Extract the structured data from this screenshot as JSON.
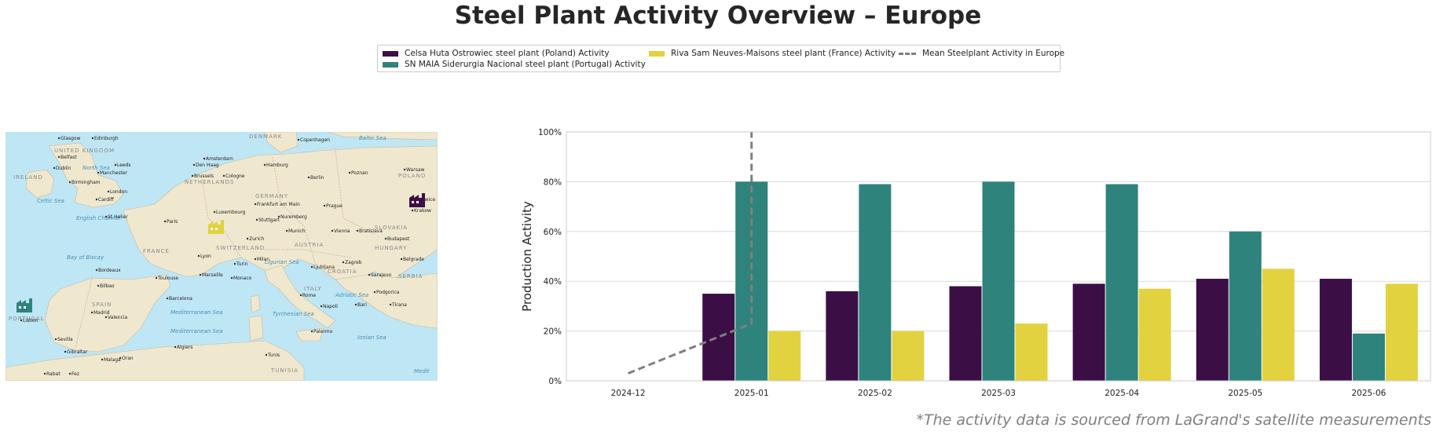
{
  "title": "Steel Plant Activity Overview – Europe",
  "footnote": "*The activity data is sourced from LaGrand's satellite measurements",
  "legend": [
    {
      "label": "Celsa Huta Ostrowiec steel plant (Poland) Activity",
      "color": "#3b0f46"
    },
    {
      "label": "SN MAIA Siderurgia Nacional steel plant (Portugal) Activity",
      "color": "#2e837c"
    },
    {
      "label": "Riva Sam Neuves-Maisons steel plant (France) Activity",
      "color": "#e2d23f"
    },
    {
      "label": "Mean Steelplant Activity in Europe",
      "color": "#808080"
    }
  ],
  "map": {
    "countries": [
      "UNITED KINGDOM",
      "IRELAND",
      "DENMARK",
      "NETHERLANDS",
      "GERMANY",
      "POLAND",
      "FRANCE",
      "SWITZERLAND",
      "AUSTRIA",
      "HUNGARY",
      "SLOVAKIA",
      "CROATIA",
      "SERBIA",
      "ITALY",
      "SPAIN",
      "PORTUGAL",
      "TUNISIA"
    ],
    "seas": [
      "North Sea",
      "Baltic Sea",
      "Celtic Sea",
      "English Channel",
      "Bay of Biscay",
      "Ligurian Sea",
      "Adriatic Sea",
      "Tyrrhenian Sea",
      "Ionian Sea",
      "Mediterranean Sea",
      "Mediterranean Sea",
      "Medit"
    ],
    "cities": [
      "Glasgow",
      "Edinburgh",
      "Belfast",
      "Leeds",
      "Dublin",
      "Manchester",
      "Birmingham",
      "London",
      "Cardiff",
      "Amsterdam",
      "Den Haag",
      "Brussels",
      "Cologne",
      "Copenhagen",
      "Hamburg",
      "Berlin",
      "Poznan",
      "Warsaw",
      "Katowice",
      "Krakow",
      "Prague",
      "Frankfurt am Main",
      "Luxembourg",
      "St Helier",
      "Paris",
      "Stuttgart",
      "Nuremberg",
      "Munich",
      "Vienna",
      "Bratislava",
      "Budapest",
      "Zurich",
      "Lyon",
      "Milan",
      "Turin",
      "Monaco",
      "Marseille",
      "Toulouse",
      "Bordeaux",
      "Bilbao",
      "Ljubljana",
      "Zagreb",
      "Belgrade",
      "Sarajevo",
      "Podgorica",
      "Rome",
      "Tirana",
      "Bari",
      "Napoli",
      "Barcelona",
      "Valencia",
      "Madrid",
      "Lisbon",
      "Sevilla",
      "Gibraltar",
      "Oran",
      "Algiers",
      "Tunis",
      "Palermo",
      "Malaga",
      "Rabat",
      "Fez"
    ],
    "markers": [
      {
        "name": "Poland plant",
        "color": "#3b0f46",
        "icon": "factory-icon"
      },
      {
        "name": "France plant",
        "color": "#e2d23f",
        "icon": "factory-icon"
      },
      {
        "name": "Portugal plant",
        "color": "#2e837c",
        "icon": "factory-icon"
      }
    ]
  },
  "chart_data": {
    "type": "bar",
    "title": "",
    "xlabel": "",
    "ylabel": "Production Activity",
    "ylim": [
      0,
      100
    ],
    "yticks": [
      0,
      20,
      40,
      60,
      80,
      100
    ],
    "ytick_labels": [
      "0%",
      "20%",
      "40%",
      "60%",
      "80%",
      "100%"
    ],
    "grid": true,
    "legend_position": "top-center",
    "categories": [
      "2024-12",
      "2025-01",
      "2025-02",
      "2025-03",
      "2025-04",
      "2025-05",
      "2025-06"
    ],
    "series": [
      {
        "name": "Celsa Huta Ostrowiec steel plant (Poland) Activity",
        "type": "bar",
        "color": "#3b0f46",
        "values": [
          null,
          35,
          36,
          38,
          39,
          41,
          41
        ]
      },
      {
        "name": "SN MAIA Siderurgia Nacional steel plant (Portugal) Activity",
        "type": "bar",
        "color": "#2e837c",
        "values": [
          null,
          80,
          79,
          80,
          79,
          60,
          19
        ]
      },
      {
        "name": "Riva Sam Neuves-Maisons steel plant (France) Activity",
        "type": "bar",
        "color": "#e2d23f",
        "values": [
          null,
          20,
          20,
          23,
          37,
          45,
          39
        ]
      },
      {
        "name": "Mean Steelplant Activity in Europe",
        "type": "line",
        "style": "dashed",
        "color": "#808080",
        "points": [
          [
            "2024-12",
            3
          ],
          [
            "2025-01",
            23
          ],
          [
            "2025-01",
            100
          ]
        ]
      }
    ]
  }
}
